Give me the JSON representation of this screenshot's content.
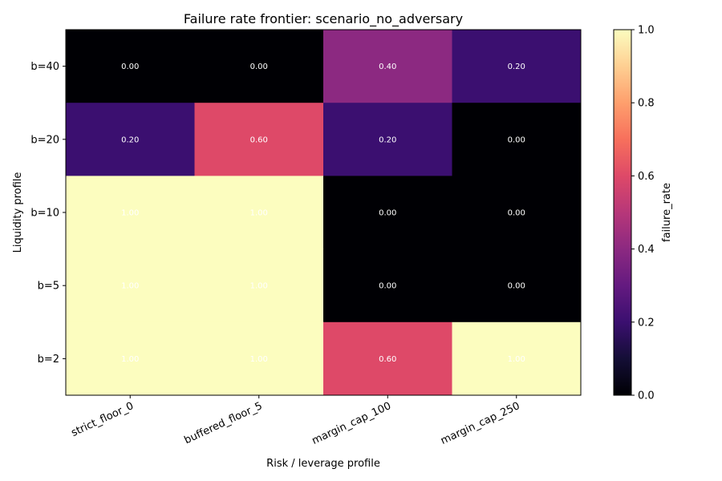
{
  "chart_data": {
    "type": "heatmap",
    "title": "Failure rate frontier: scenario_no_adversary",
    "xlabel": "Risk / leverage profile",
    "ylabel": "Liquidity profile",
    "x_categories": [
      "strict_floor_0",
      "buffered_floor_5",
      "margin_cap_100",
      "margin_cap_250"
    ],
    "y_categories": [
      "b=40",
      "b=20",
      "b=10",
      "b=5",
      "b=2"
    ],
    "values": [
      [
        0.0,
        0.0,
        0.4,
        0.2
      ],
      [
        0.2,
        0.6,
        0.2,
        0.0
      ],
      [
        1.0,
        1.0,
        0.0,
        0.0
      ],
      [
        1.0,
        1.0,
        0.0,
        0.0
      ],
      [
        1.0,
        1.0,
        0.6,
        1.0
      ]
    ],
    "cell_labels": [
      [
        "0.00",
        "0.00",
        "0.40",
        "0.20"
      ],
      [
        "0.20",
        "0.60",
        "0.20",
        "0.00"
      ],
      [
        "1.00",
        "1.00",
        "0.00",
        "0.00"
      ],
      [
        "1.00",
        "1.00",
        "0.00",
        "0.00"
      ],
      [
        "1.00",
        "1.00",
        "0.60",
        "1.00"
      ]
    ],
    "colorbar": {
      "label": "failure_rate",
      "range": [
        0,
        1
      ],
      "ticks": [
        "0.0",
        "0.2",
        "0.4",
        "0.6",
        "0.8",
        "1.0"
      ],
      "colormap": "magma"
    }
  }
}
